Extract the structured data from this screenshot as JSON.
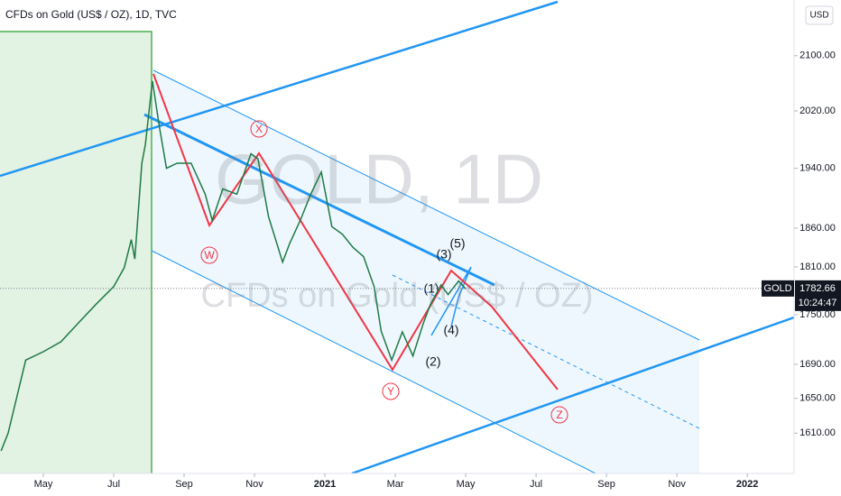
{
  "chart_data": {
    "type": "line",
    "title": "CFDs on Gold (US$ / OZ), 1D, TVC",
    "watermark": "GOLD, 1D",
    "watermark_subtitle": "CFDs on Gold (US$ / OZ)",
    "symbol": "GOLD",
    "currency": "USD",
    "last_price": 1782.66,
    "countdown": "10:24:47",
    "log_scale": true,
    "color": "#1f7a45",
    "x": [
      3.8,
      4,
      4.5,
      5,
      5.5,
      6,
      6.5,
      7,
      7.3,
      7.5,
      7.6,
      7.8,
      7.9,
      8.1,
      8.3,
      8.5,
      8.8,
      9.2,
      9.6,
      9.8,
      10.1,
      10.5,
      10.9,
      11.1,
      11.4,
      11.8,
      12,
      12.3,
      12.6,
      12.9,
      13.2,
      13.5,
      13.8,
      14.1,
      14.4,
      14.6,
      14.9,
      15.2,
      15.5,
      15.8,
      16,
      16.3,
      16.5,
      16.8,
      17
    ],
    "values": [
      1590,
      1610,
      1695,
      1705,
      1717,
      1740,
      1763,
      1785,
      1809,
      1845,
      1820,
      1947,
      1973,
      2063,
      1997,
      1940,
      1947,
      1947,
      1905,
      1870,
      1912,
      1905,
      1960,
      1953,
      1875,
      1816,
      1840,
      1870,
      1905,
      1935,
      1862,
      1852,
      1835,
      1823,
      1785,
      1730,
      1695,
      1729,
      1700,
      1740,
      1763,
      1787,
      1775,
      1792,
      1782
    ],
    "xlim": [
      3.77,
      26.33
    ],
    "ylim": [
      1565,
      2184
    ],
    "xticks": [
      {
        "value": 5,
        "label": "May"
      },
      {
        "value": 7,
        "label": "Jul"
      },
      {
        "value": 9,
        "label": "Sep"
      },
      {
        "value": 11,
        "label": "Nov"
      },
      {
        "value": 13,
        "label": "2021"
      },
      {
        "value": 15,
        "label": "Mar"
      },
      {
        "value": 17,
        "label": "May"
      },
      {
        "value": 19,
        "label": "Jul"
      },
      {
        "value": 21,
        "label": "Sep"
      },
      {
        "value": 23,
        "label": "Nov"
      },
      {
        "value": 25,
        "label": "2022"
      }
    ],
    "yticks": [
      {
        "value": 1610,
        "label": "1610.00"
      },
      {
        "value": 1650,
        "label": "1650.00"
      },
      {
        "value": 1690,
        "label": "1690.00"
      },
      {
        "value": 1750,
        "label": "1750.00"
      },
      {
        "value": 1810,
        "label": "1810.00"
      },
      {
        "value": 1860,
        "label": "1860.00"
      },
      {
        "value": 1940,
        "label": "1940.00"
      },
      {
        "value": 2020,
        "label": "2020.00"
      },
      {
        "value": 2100,
        "label": "2100.00"
      }
    ],
    "annotations": [
      "W",
      "X",
      "Y",
      "Z",
      "(1)",
      "(2)",
      "(3)",
      "(4)",
      "(5)"
    ]
  }
}
